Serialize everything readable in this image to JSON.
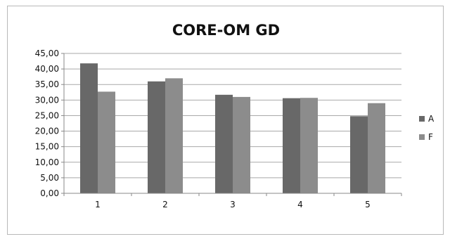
{
  "chart_data": {
    "type": "bar",
    "title": "CORE-OM GD",
    "xlabel": "",
    "ylabel": "",
    "categories": [
      "1",
      "2",
      "3",
      "4",
      "5"
    ],
    "series": [
      {
        "name": "A",
        "values": [
          41.8,
          36.0,
          31.7,
          30.6,
          24.8
        ],
        "color": "#686868"
      },
      {
        "name": "F",
        "values": [
          32.7,
          37.0,
          31.0,
          30.7,
          29.0
        ],
        "color": "#8c8c8c"
      }
    ],
    "ylim": [
      0,
      45
    ],
    "yticks": [
      "0,00",
      "5,00",
      "10,00",
      "15,00",
      "20,00",
      "25,00",
      "30,00",
      "35,00",
      "40,00",
      "45,00"
    ],
    "grid": true,
    "legend_position": "right"
  }
}
